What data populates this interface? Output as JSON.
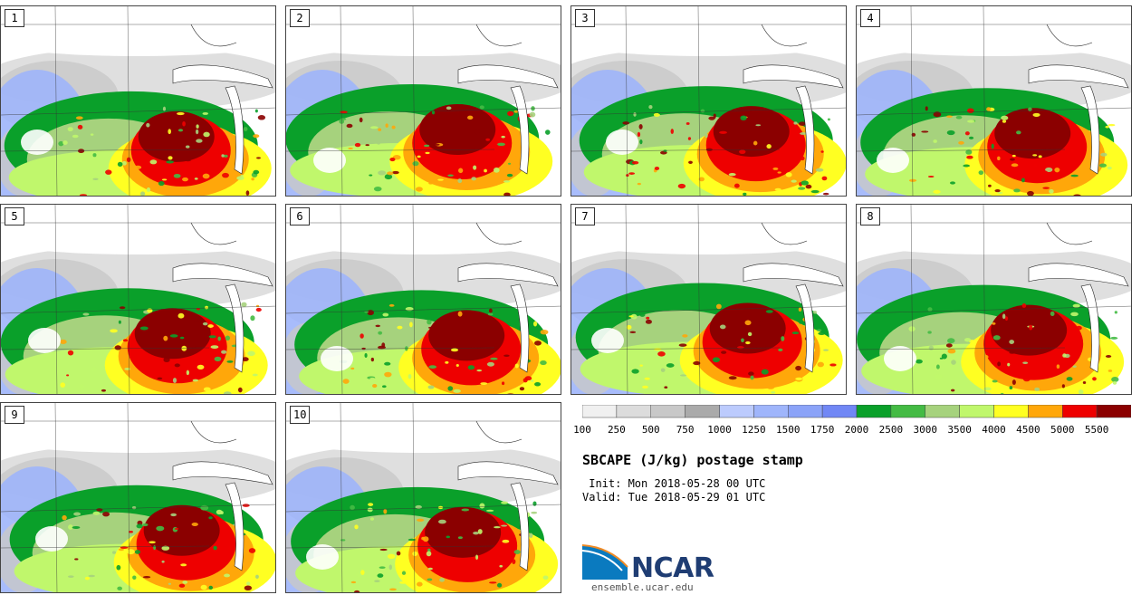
{
  "title": "SBCAPE (J/kg) postage stamp",
  "init": " Init: Mon 2018-05-28 00 UTC",
  "valid": "Valid: Tue 2018-05-29 01 UTC",
  "logo_text": "NCAR",
  "site": "ensemble.ucar.edu",
  "members": [
    "1",
    "2",
    "3",
    "4",
    "5",
    "6",
    "7",
    "8",
    "9",
    "10"
  ],
  "colorbar": {
    "labels": [
      "100",
      "250",
      "500",
      "750",
      "1000",
      "1250",
      "1500",
      "1750",
      "2000",
      "2500",
      "3000",
      "3500",
      "4000",
      "4500",
      "5000",
      "5500"
    ],
    "colors": [
      "#f0f0f0",
      "#dcdcdc",
      "#c8c8c8",
      "#aaaaaa",
      "#bccbfd",
      "#9fb5fb",
      "#8ba3f8",
      "#7187f5",
      "#0aa02a",
      "#44bb44",
      "#a6d27d",
      "#c0f76c",
      "#ffff22",
      "#ffa70a",
      "#ee0000",
      "#8b0000"
    ]
  },
  "colors": {
    "border": "#444444",
    "map_lines": "#222222",
    "logo_blue": "#1f3d73"
  }
}
